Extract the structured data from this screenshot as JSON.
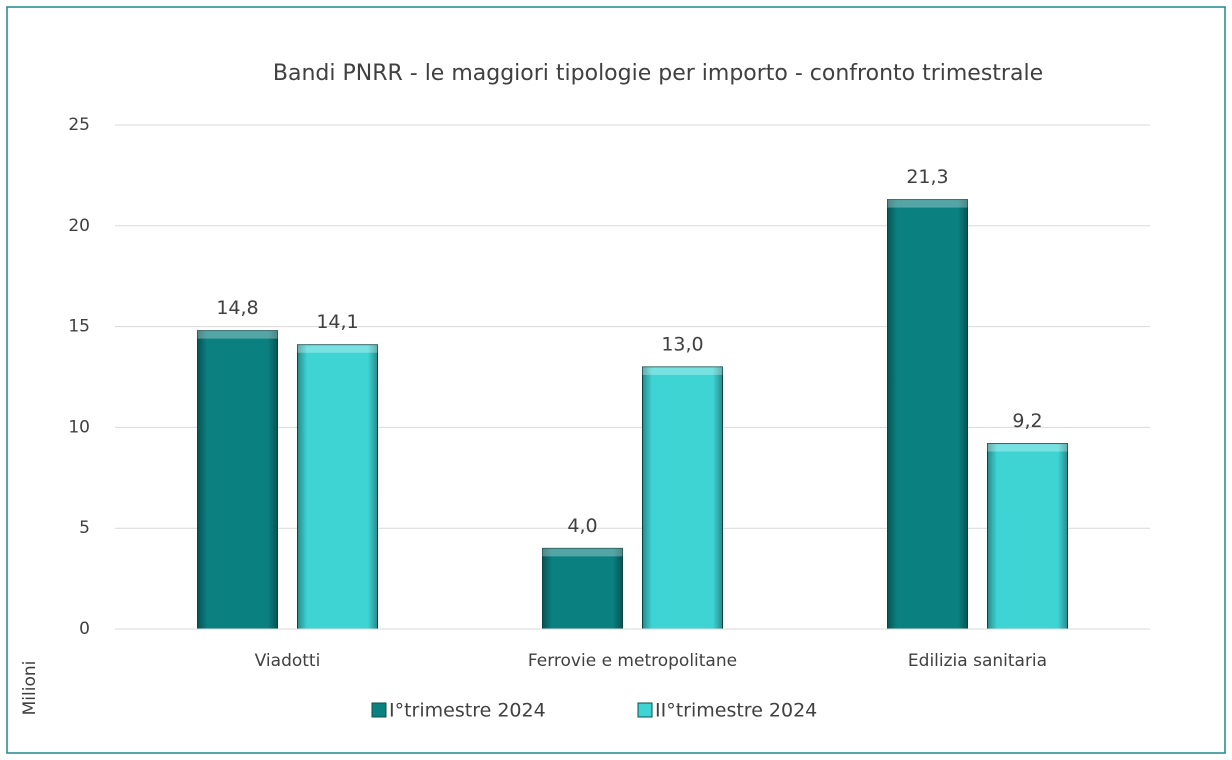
{
  "chart_data": {
    "type": "bar",
    "title": "Bandi PNRR - le maggiori tipologie per importo - confronto trimestrale",
    "y_label": "Milioni",
    "categories": [
      "Viadotti",
      "Ferrovie e metropolitane",
      "Edilizia sanitaria"
    ],
    "series": [
      {
        "name": "I°trimestre 2024",
        "color": "#0b8080",
        "values": [
          14.8,
          4.0,
          21.3
        ],
        "value_labels": [
          "14,8",
          "4,0",
          "21,3"
        ]
      },
      {
        "name": "II°trimestre 2024",
        "color": "#3ed4d4",
        "values": [
          14.1,
          13.0,
          9.2
        ],
        "value_labels": [
          "14,1",
          "13,0",
          "9,2"
        ]
      }
    ],
    "ylim": [
      0,
      25
    ],
    "yticks": [
      0,
      5,
      10,
      15,
      20,
      25
    ],
    "grid": true,
    "legend": "bottom"
  }
}
